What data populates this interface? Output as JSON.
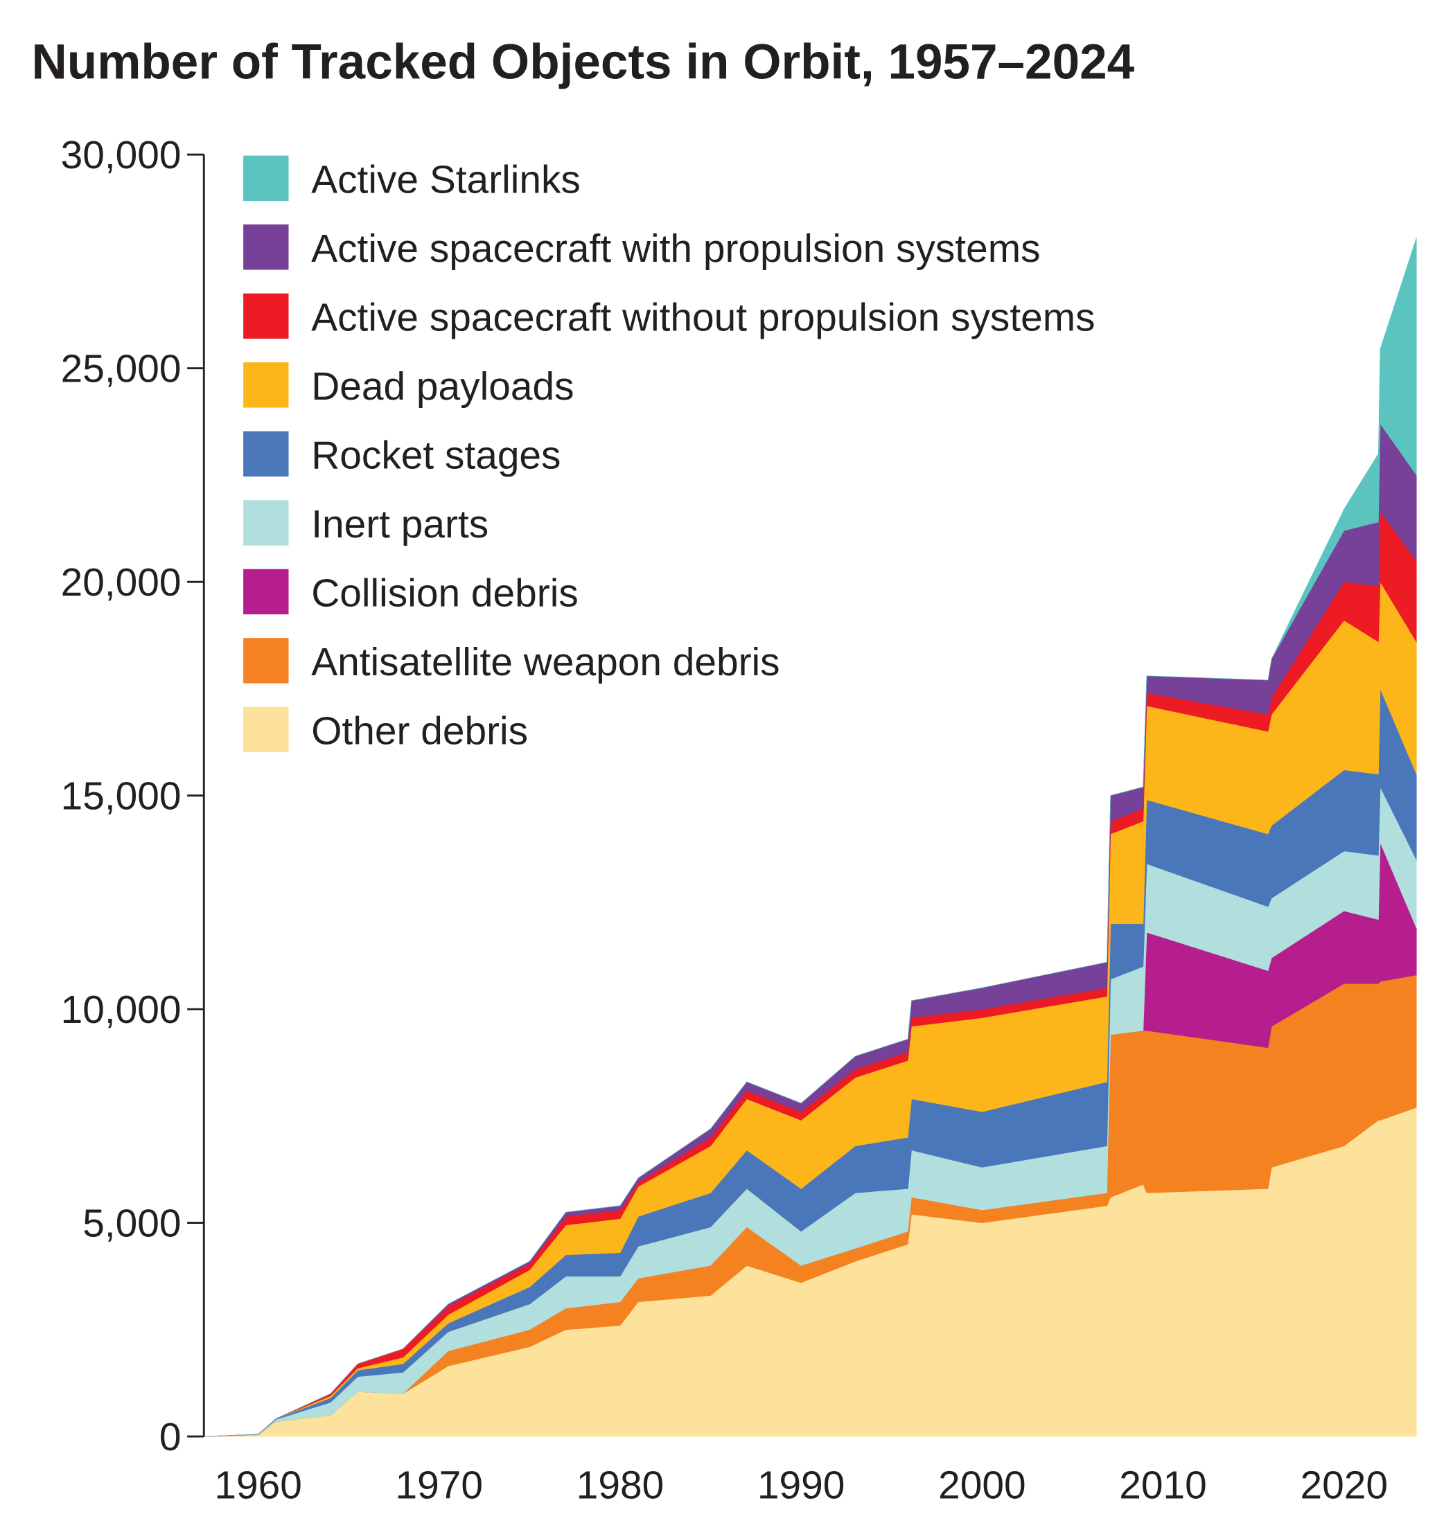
{
  "chart_data": {
    "type": "area",
    "stacked": true,
    "title": "Number of Tracked Objects in Orbit, 1957–2024",
    "xlabel": "",
    "ylabel": "",
    "xlim": [
      1957,
      2024
    ],
    "ylim": [
      0,
      30000
    ],
    "x_ticks": [
      "1960",
      "1970",
      "1980",
      "1990",
      "2000",
      "2010",
      "2020"
    ],
    "y_ticks": [
      "0",
      "5,000",
      "10,000",
      "15,000",
      "20,000",
      "25,000",
      "30,000"
    ],
    "grid": false,
    "legend_position": "top-left",
    "x": [
      1957,
      1960,
      1961,
      1964,
      1965.5,
      1968,
      1970.5,
      1975,
      1977,
      1980,
      1981,
      1985,
      1987,
      1990,
      1993,
      1995.9,
      1996.1,
      2000,
      2006.9,
      2007.1,
      2008.9,
      2009.1,
      2015.8,
      2016,
      2020,
      2021.9,
      2022,
      2024
    ],
    "series": [
      {
        "name": "Other debris",
        "color": "#fde29c",
        "values": [
          0,
          40,
          350,
          500,
          1050,
          1000,
          1650,
          2100,
          2500,
          2600,
          3150,
          3300,
          4000,
          3600,
          4100,
          4500,
          5200,
          5000,
          5400,
          5600,
          5900,
          5700,
          5800,
          6300,
          6800,
          7400,
          7400,
          7700
        ]
      },
      {
        "name": "Antisatellite weapon debris",
        "color": "#f58220",
        "values": [
          0,
          0,
          0,
          0,
          0,
          0,
          350,
          400,
          500,
          550,
          550,
          700,
          900,
          400,
          300,
          300,
          400,
          300,
          300,
          3800,
          3600,
          3800,
          3300,
          3300,
          3800,
          3200,
          3250,
          3100
        ]
      },
      {
        "name": "Collision debris",
        "color": "#b51e8c",
        "values": [
          0,
          0,
          0,
          0,
          0,
          0,
          0,
          0,
          0,
          0,
          0,
          0,
          0,
          0,
          0,
          0,
          0,
          0,
          0,
          0,
          0,
          2300,
          1800,
          1600,
          1700,
          1500,
          3250,
          1100
        ]
      },
      {
        "name": "Inert parts",
        "color": "#b1dfdd",
        "values": [
          0,
          5,
          50,
          300,
          350,
          500,
          450,
          600,
          750,
          600,
          750,
          900,
          900,
          800,
          1300,
          1000,
          1100,
          1000,
          1100,
          1300,
          1500,
          1600,
          1500,
          1400,
          1400,
          1500,
          1300,
          1600
        ]
      },
      {
        "name": "Rocket stages",
        "color": "#4a77ba",
        "values": [
          0,
          5,
          20,
          100,
          150,
          200,
          200,
          400,
          500,
          550,
          700,
          800,
          900,
          1000,
          1100,
          1200,
          1200,
          1300,
          1500,
          1300,
          1000,
          1500,
          1700,
          1700,
          1900,
          1900,
          2300,
          2000
        ]
      },
      {
        "name": "Dead payloads",
        "color": "#fcb619",
        "values": [
          0,
          0,
          0,
          50,
          50,
          150,
          200,
          400,
          700,
          800,
          700,
          1100,
          1200,
          1600,
          1600,
          1800,
          1700,
          2200,
          2000,
          2100,
          2400,
          2200,
          2400,
          2600,
          3500,
          3100,
          2500,
          3100
        ]
      },
      {
        "name": "Active spacecraft without propulsion systems",
        "color": "#ed1c24",
        "values": [
          0,
          0,
          0,
          50,
          100,
          200,
          200,
          150,
          200,
          200,
          100,
          200,
          200,
          200,
          200,
          200,
          200,
          200,
          200,
          300,
          300,
          300,
          400,
          400,
          900,
          1300,
          1650,
          1900
        ]
      },
      {
        "name": "Active spacecraft with propulsion systems",
        "color": "#774199",
        "values": [
          0,
          0,
          0,
          0,
          0,
          0,
          50,
          50,
          100,
          100,
          100,
          200,
          200,
          200,
          300,
          300,
          400,
          500,
          600,
          600,
          500,
          400,
          800,
          900,
          1200,
          1500,
          2050,
          2000
        ]
      },
      {
        "name": "Active Starlinks",
        "color": "#5bc4bf",
        "values": [
          0,
          0,
          0,
          0,
          0,
          0,
          0,
          0,
          0,
          0,
          0,
          0,
          0,
          0,
          0,
          0,
          0,
          0,
          0,
          0,
          0,
          0,
          0,
          0,
          500,
          1600,
          1750,
          5550
        ]
      }
    ]
  }
}
